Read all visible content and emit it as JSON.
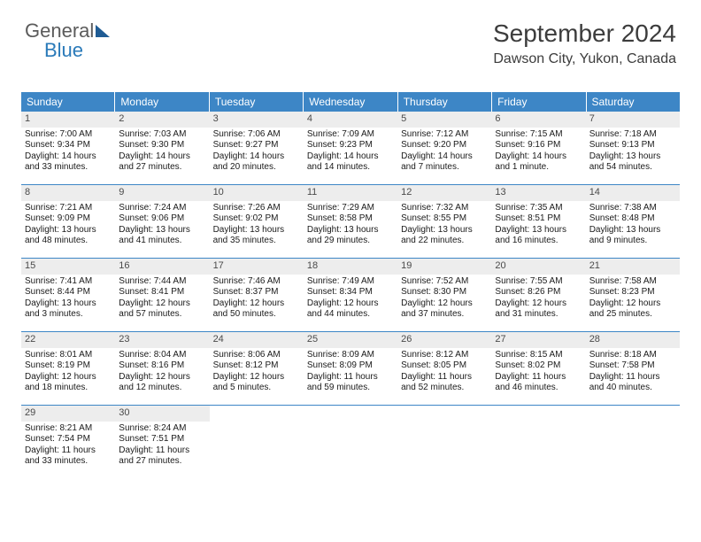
{
  "brand": {
    "part1": "General",
    "part2": "Blue"
  },
  "header": {
    "month_title": "September 2024",
    "location": "Dawson City, Yukon, Canada"
  },
  "dow": [
    "Sunday",
    "Monday",
    "Tuesday",
    "Wednesday",
    "Thursday",
    "Friday",
    "Saturday"
  ],
  "colors": {
    "header_bg": "#3d86c6",
    "header_fg": "#ffffff",
    "daynum_bg": "#ededed",
    "rule": "#3d86c6",
    "logo_grey": "#5b5b5b",
    "logo_blue": "#2a7ab9"
  },
  "days": [
    {
      "n": "1",
      "sr": "7:00 AM",
      "ss": "9:34 PM",
      "dl": "14 hours and 33 minutes."
    },
    {
      "n": "2",
      "sr": "7:03 AM",
      "ss": "9:30 PM",
      "dl": "14 hours and 27 minutes."
    },
    {
      "n": "3",
      "sr": "7:06 AM",
      "ss": "9:27 PM",
      "dl": "14 hours and 20 minutes."
    },
    {
      "n": "4",
      "sr": "7:09 AM",
      "ss": "9:23 PM",
      "dl": "14 hours and 14 minutes."
    },
    {
      "n": "5",
      "sr": "7:12 AM",
      "ss": "9:20 PM",
      "dl": "14 hours and 7 minutes."
    },
    {
      "n": "6",
      "sr": "7:15 AM",
      "ss": "9:16 PM",
      "dl": "14 hours and 1 minute."
    },
    {
      "n": "7",
      "sr": "7:18 AM",
      "ss": "9:13 PM",
      "dl": "13 hours and 54 minutes."
    },
    {
      "n": "8",
      "sr": "7:21 AM",
      "ss": "9:09 PM",
      "dl": "13 hours and 48 minutes."
    },
    {
      "n": "9",
      "sr": "7:24 AM",
      "ss": "9:06 PM",
      "dl": "13 hours and 41 minutes."
    },
    {
      "n": "10",
      "sr": "7:26 AM",
      "ss": "9:02 PM",
      "dl": "13 hours and 35 minutes."
    },
    {
      "n": "11",
      "sr": "7:29 AM",
      "ss": "8:58 PM",
      "dl": "13 hours and 29 minutes."
    },
    {
      "n": "12",
      "sr": "7:32 AM",
      "ss": "8:55 PM",
      "dl": "13 hours and 22 minutes."
    },
    {
      "n": "13",
      "sr": "7:35 AM",
      "ss": "8:51 PM",
      "dl": "13 hours and 16 minutes."
    },
    {
      "n": "14",
      "sr": "7:38 AM",
      "ss": "8:48 PM",
      "dl": "13 hours and 9 minutes."
    },
    {
      "n": "15",
      "sr": "7:41 AM",
      "ss": "8:44 PM",
      "dl": "13 hours and 3 minutes."
    },
    {
      "n": "16",
      "sr": "7:44 AM",
      "ss": "8:41 PM",
      "dl": "12 hours and 57 minutes."
    },
    {
      "n": "17",
      "sr": "7:46 AM",
      "ss": "8:37 PM",
      "dl": "12 hours and 50 minutes."
    },
    {
      "n": "18",
      "sr": "7:49 AM",
      "ss": "8:34 PM",
      "dl": "12 hours and 44 minutes."
    },
    {
      "n": "19",
      "sr": "7:52 AM",
      "ss": "8:30 PM",
      "dl": "12 hours and 37 minutes."
    },
    {
      "n": "20",
      "sr": "7:55 AM",
      "ss": "8:26 PM",
      "dl": "12 hours and 31 minutes."
    },
    {
      "n": "21",
      "sr": "7:58 AM",
      "ss": "8:23 PM",
      "dl": "12 hours and 25 minutes."
    },
    {
      "n": "22",
      "sr": "8:01 AM",
      "ss": "8:19 PM",
      "dl": "12 hours and 18 minutes."
    },
    {
      "n": "23",
      "sr": "8:04 AM",
      "ss": "8:16 PM",
      "dl": "12 hours and 12 minutes."
    },
    {
      "n": "24",
      "sr": "8:06 AM",
      "ss": "8:12 PM",
      "dl": "12 hours and 5 minutes."
    },
    {
      "n": "25",
      "sr": "8:09 AM",
      "ss": "8:09 PM",
      "dl": "11 hours and 59 minutes."
    },
    {
      "n": "26",
      "sr": "8:12 AM",
      "ss": "8:05 PM",
      "dl": "11 hours and 52 minutes."
    },
    {
      "n": "27",
      "sr": "8:15 AM",
      "ss": "8:02 PM",
      "dl": "11 hours and 46 minutes."
    },
    {
      "n": "28",
      "sr": "8:18 AM",
      "ss": "7:58 PM",
      "dl": "11 hours and 40 minutes."
    },
    {
      "n": "29",
      "sr": "8:21 AM",
      "ss": "7:54 PM",
      "dl": "11 hours and 33 minutes."
    },
    {
      "n": "30",
      "sr": "8:24 AM",
      "ss": "7:51 PM",
      "dl": "11 hours and 27 minutes."
    }
  ],
  "labels": {
    "sunrise": "Sunrise: ",
    "sunset": "Sunset: ",
    "daylight": "Daylight: "
  }
}
